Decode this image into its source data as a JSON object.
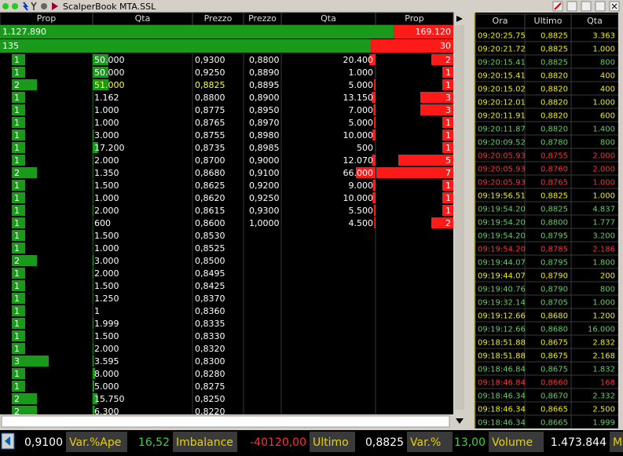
{
  "window": {
    "title": "ScalperBook MTA.SSL"
  },
  "book": {
    "headers": [
      "Prop",
      "Qta",
      "Prezzo",
      "Prezzo",
      "Qta",
      "Prop"
    ],
    "totals": [
      {
        "bid": "1.127.890",
        "ask": "169.120"
      },
      {
        "bid": "135",
        "ask": "30"
      }
    ],
    "highlight_color": "#ffff40",
    "highlight_row": 2,
    "rows": [
      [
        "1",
        "50.000",
        "0,9300",
        "0,8800",
        "20.400",
        "2"
      ],
      [
        "1",
        "50.000",
        "0,9250",
        "0,8890",
        "1.000",
        "1"
      ],
      [
        "2",
        "51.000",
        "0,8825",
        "0,8895",
        "5.000",
        "1"
      ],
      [
        "1",
        "1.162",
        "0,8800",
        "0,8900",
        "13.150",
        "3"
      ],
      [
        "1",
        "1.000",
        "0,8775",
        "0,8950",
        "7.000",
        "3"
      ],
      [
        "1",
        "1.000",
        "0,8765",
        "0,8970",
        "5.000",
        "1"
      ],
      [
        "1",
        "3.000",
        "0,8755",
        "0,8980",
        "10.000",
        "1"
      ],
      [
        "1",
        "17.200",
        "0,8735",
        "0,8985",
        "500",
        "1"
      ],
      [
        "1",
        "2.000",
        "0,8700",
        "0,9000",
        "12.070",
        "5"
      ],
      [
        "2",
        "1.350",
        "0,8680",
        "0,9100",
        "66.000",
        "7"
      ],
      [
        "1",
        "1.500",
        "0,8625",
        "0,9200",
        "9.000",
        "1"
      ],
      [
        "1",
        "1.000",
        "0,8620",
        "0,9250",
        "10.000",
        "1"
      ],
      [
        "1",
        "2.000",
        "0,8615",
        "0,9300",
        "5.500",
        "1"
      ],
      [
        "1",
        "600",
        "0,8600",
        "1,0000",
        "4.500",
        "2"
      ],
      [
        "1",
        "1.500",
        "0,8530"
      ],
      [
        "1",
        "1.000",
        "0,8525"
      ],
      [
        "2",
        "3.000",
        "0,8500"
      ],
      [
        "1",
        "2.000",
        "0,8495"
      ],
      [
        "1",
        "1.500",
        "0,8425"
      ],
      [
        "1",
        "1.250",
        "0,8370"
      ],
      [
        "1",
        "1",
        "0,8360"
      ],
      [
        "1",
        "1.999",
        "0,8335"
      ],
      [
        "1",
        "1.500",
        "0,8330"
      ],
      [
        "1",
        "2.000",
        "0,8320"
      ],
      [
        "3",
        "3.595",
        "0,8300"
      ],
      [
        "1",
        "8.000",
        "0,8280"
      ],
      [
        "1",
        "5.000",
        "0,8275"
      ],
      [
        "2",
        "15.750",
        "0,8250"
      ],
      [
        "2",
        "6.300",
        "0,8220"
      ]
    ]
  },
  "tape": {
    "headers": [
      "Ora",
      "Ultimo",
      "Qta"
    ],
    "rows": [
      {
        "time": "09:20:25.75",
        "price": "0,8825",
        "qty": "3.363",
        "color": "#f0f000"
      },
      {
        "time": "09:20:21.72",
        "price": "0,8825",
        "qty": "1.000",
        "color": "#f0f000"
      },
      {
        "time": "09:20:15.41",
        "price": "0,8825",
        "qty": "800",
        "color": "#60d060"
      },
      {
        "time": "09:20:15.41",
        "price": "0,8820",
        "qty": "400",
        "color": "#f0f000"
      },
      {
        "time": "09:20:15.02",
        "price": "0,8820",
        "qty": "400",
        "color": "#f0f000"
      },
      {
        "time": "09:20:12.01",
        "price": "0,8820",
        "qty": "1.000",
        "color": "#f0f000"
      },
      {
        "time": "09:20:11.91",
        "price": "0,8820",
        "qty": "600",
        "color": "#f0f000"
      },
      {
        "time": "09:20:11.87",
        "price": "0,8820",
        "qty": "1.400",
        "color": "#60d060"
      },
      {
        "time": "09:20:09.52",
        "price": "0,8780",
        "qty": "800",
        "color": "#60d060"
      },
      {
        "time": "09:20:05.93",
        "price": "0,8755",
        "qty": "2.000",
        "color": "#ff3030"
      },
      {
        "time": "09:20:05.93",
        "price": "0,8760",
        "qty": "2.000",
        "color": "#ff3030"
      },
      {
        "time": "09:20:05.93",
        "price": "0,8765",
        "qty": "1.000",
        "color": "#ff3030"
      },
      {
        "time": "09:19:56.51",
        "price": "0,8825",
        "qty": "1.000",
        "color": "#f0f000"
      },
      {
        "time": "09:19:54.20",
        "price": "0,8825",
        "qty": "4.837",
        "color": "#60d060"
      },
      {
        "time": "09:19:54.20",
        "price": "0,8800",
        "qty": "1.777",
        "color": "#60d060"
      },
      {
        "time": "09:19:54.20",
        "price": "0,8795",
        "qty": "3.200",
        "color": "#60d060"
      },
      {
        "time": "09:19:54.20",
        "price": "0,8785",
        "qty": "2.186",
        "color": "#ff3030"
      },
      {
        "time": "09:19:44.07",
        "price": "0,8795",
        "qty": "1.800",
        "color": "#60d060"
      },
      {
        "time": "09:19:44.07",
        "price": "0,8790",
        "qty": "200",
        "color": "#f0f000"
      },
      {
        "time": "09:19:40.76",
        "price": "0,8790",
        "qty": "800",
        "color": "#60d060"
      },
      {
        "time": "09:19:32.14",
        "price": "0,8705",
        "qty": "1.000",
        "color": "#60d060"
      },
      {
        "time": "09:19:12.66",
        "price": "0,8680",
        "qty": "1.200",
        "color": "#f0f000"
      },
      {
        "time": "09:19:12.66",
        "price": "0,8680",
        "qty": "16.000",
        "color": "#60d060"
      },
      {
        "time": "09:18:51.88",
        "price": "0,8675",
        "qty": "2.832",
        "color": "#f0f000"
      },
      {
        "time": "09:18:51.88",
        "price": "0,8675",
        "qty": "2.168",
        "color": "#f0f000"
      },
      {
        "time": "09:18:46.84",
        "price": "0,8675",
        "qty": "1.832",
        "color": "#60d060"
      },
      {
        "time": "09:18:46.84",
        "price": "0,8660",
        "qty": "168",
        "color": "#ff3030"
      },
      {
        "time": "09:18:46.34",
        "price": "0,8670",
        "qty": "2.332",
        "color": "#60d060"
      },
      {
        "time": "09:18:46.34",
        "price": "0,8665",
        "qty": "2.500",
        "color": "#f0f000"
      },
      {
        "time": "09:18:46.34",
        "price": "0,8665",
        "qty": "1.999",
        "color": "#60d060"
      }
    ]
  },
  "status": [
    {
      "value": "0,9100",
      "color": "#ffffff"
    },
    {
      "label": "Var.%Ape",
      "value": "16,52",
      "color": "#40d040"
    },
    {
      "label": "Imbalance",
      "value": "-40120,00",
      "color": "#ff3030"
    },
    {
      "label": "Ultimo",
      "value": "0,8825",
      "color": "#ffffff"
    },
    {
      "label": "Var.%",
      "value": "13,00",
      "color": "#40d040"
    },
    {
      "label": "Volume",
      "value": "1.473.844",
      "color": "#ffffff"
    },
    {
      "label": "M"
    }
  ]
}
